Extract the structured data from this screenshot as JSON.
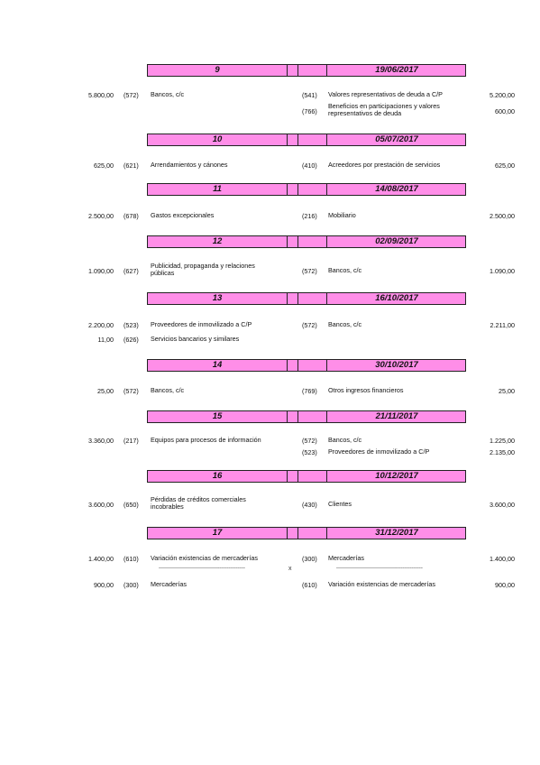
{
  "entries": [
    {
      "num": "9",
      "date": "19/06/2017"
    },
    {
      "num": "10",
      "date": "05/07/2017"
    },
    {
      "num": "11",
      "date": "14/08/2017"
    },
    {
      "num": "12",
      "date": "02/09/2017"
    },
    {
      "num": "13",
      "date": "16/10/2017"
    },
    {
      "num": "14",
      "date": "30/10/2017"
    },
    {
      "num": "15",
      "date": "21/11/2017"
    },
    {
      "num": "16",
      "date": "10/12/2017"
    },
    {
      "num": "17",
      "date": "31/12/2017"
    }
  ],
  "lines": {
    "e9_l1": {
      "amt": "5.800,00",
      "code": "(572)",
      "name": "Bancos, c/c"
    },
    "e9_r1": {
      "code": "(541)",
      "name": "Valores representativos de deuda a C/P",
      "amt": "5.200,00"
    },
    "e9_r2": {
      "code": "(766)",
      "name": "Beneficios en participaciones y valores representativos de deuda",
      "amt": "600,00"
    },
    "e10_l1": {
      "amt": "625,00",
      "code": "(621)",
      "name": "Arrendamientos y cánones"
    },
    "e10_r1": {
      "code": "(410)",
      "name": "Acreedores por prestación de servicios",
      "amt": "625,00"
    },
    "e11_l1": {
      "amt": "2.500,00",
      "code": "(678)",
      "name": "Gastos excepcionales"
    },
    "e11_r1": {
      "code": "(216)",
      "name": "Mobiliario",
      "amt": "2.500,00"
    },
    "e12_l1": {
      "amt": "1.090,00",
      "code": "(627)",
      "name": "Publicidad, propaganda y relaciones públicas"
    },
    "e12_r1": {
      "code": "(572)",
      "name": "Bancos, c/c",
      "amt": "1.090,00"
    },
    "e13_l1": {
      "amt": "2.200,00",
      "code": "(523)",
      "name": "Proveedores de inmovilizado a C/P"
    },
    "e13_l2": {
      "amt": "11,00",
      "code": "(626)",
      "name": "Servicios bancarios y similares"
    },
    "e13_r1": {
      "code": "(572)",
      "name": "Bancos, c/c",
      "amt": "2.211,00"
    },
    "e14_l1": {
      "amt": "25,00",
      "code": "(572)",
      "name": "Bancos, c/c"
    },
    "e14_r1": {
      "code": "(769)",
      "name": "Otros ingresos financieros",
      "amt": "25,00"
    },
    "e15_l1": {
      "amt": "3.360,00",
      "code": "(217)",
      "name": "Equipos para procesos de información"
    },
    "e15_r1": {
      "code": "(572)",
      "name": "Bancos, c/c",
      "amt": "1.225,00"
    },
    "e15_r2": {
      "code": "(523)",
      "name": "Proveedores de inmovilizado a C/P",
      "amt": "2.135,00"
    },
    "e16_l1": {
      "amt": "3.600,00",
      "code": "(650)",
      "name": "Pérdidas de créditos comerciales incobrables"
    },
    "e16_r1": {
      "code": "(430)",
      "name": "Clientes",
      "amt": "3.600,00"
    },
    "e17_l1": {
      "amt": "1.400,00",
      "code": "(610)",
      "name": "Variación existencias de mercaderías"
    },
    "e17_r1": {
      "code": "(300)",
      "name": "Mercaderías",
      "amt": "1.400,00"
    },
    "e17_l2": {
      "amt": "900,00",
      "code": "(300)",
      "name": "Mercaderías"
    },
    "e17_r2": {
      "code": "(610)",
      "name": "Variación existencias de mercaderías",
      "amt": "900,00"
    }
  },
  "separator": {
    "left": "------------------------------------------------",
    "mid": "x",
    "right": "------------------------------------------------"
  }
}
